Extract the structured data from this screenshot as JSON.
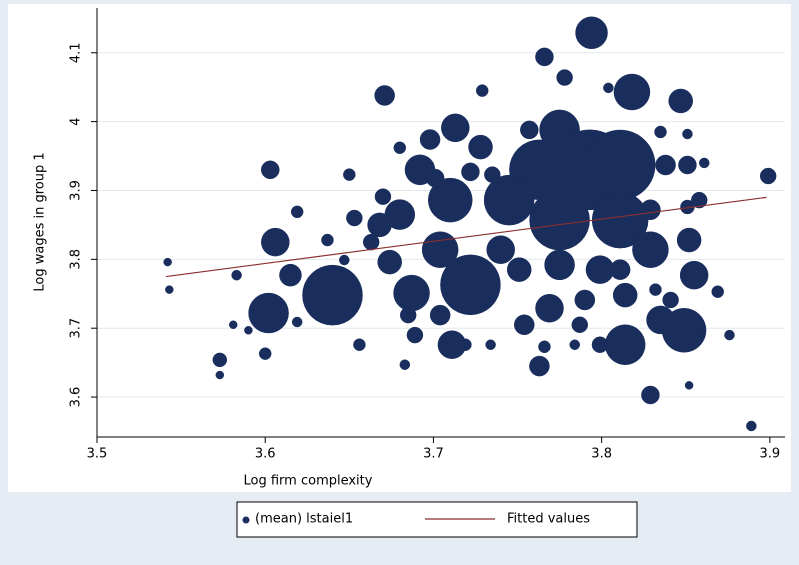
{
  "chart_data": {
    "type": "scatter",
    "xlabel": "Log firm complexity",
    "ylabel": "Log wages in group 1",
    "xlim": [
      3.5,
      3.909
    ],
    "ylim": [
      3.542,
      4.165
    ],
    "xticks": [
      3.5,
      3.6,
      3.7,
      3.8,
      3.9
    ],
    "yticks": [
      3.6,
      3.7,
      3.8,
      3.9,
      4,
      4.1
    ],
    "grid": "y",
    "legend": "bottom",
    "series": [
      {
        "name": "(mean) lstaiel1",
        "type": "scatter",
        "color": "#1a2e5e",
        "x": [
          3.794,
          3.766,
          3.778,
          3.818,
          3.847,
          3.729,
          3.671,
          3.804,
          3.835,
          3.851,
          3.713,
          3.698,
          3.728,
          3.757,
          3.775,
          3.793,
          3.811,
          3.763,
          3.745,
          3.775,
          3.811,
          3.71,
          3.692,
          3.68,
          3.704,
          3.722,
          3.64,
          3.602,
          3.603,
          3.606,
          3.615,
          3.619,
          3.573,
          3.573,
          3.6,
          3.687,
          3.674,
          3.668,
          3.67,
          3.653,
          3.65,
          3.683,
          3.685,
          3.704,
          3.711,
          3.719,
          3.734,
          3.754,
          3.769,
          3.787,
          3.79,
          3.814,
          3.814,
          3.799,
          3.784,
          3.763,
          3.766,
          3.775,
          3.829,
          3.852,
          3.855,
          3.835,
          3.849,
          3.829,
          3.852,
          3.858,
          3.869,
          3.876,
          3.889,
          3.899,
          3.851,
          3.851,
          3.858,
          3.861,
          3.838,
          3.647,
          3.637,
          3.65,
          3.619,
          3.542,
          3.543,
          3.581,
          3.59,
          3.583,
          3.663,
          3.656,
          3.689,
          3.701,
          3.722,
          3.735,
          3.74,
          3.751,
          3.799,
          3.829,
          3.841,
          3.811,
          3.832,
          3.68
        ],
        "y": [
          4.129,
          4.094,
          4.064,
          4.043,
          4.03,
          4.045,
          4.038,
          4.049,
          3.985,
          3.982,
          3.991,
          3.974,
          3.963,
          3.988,
          3.988,
          3.93,
          3.937,
          3.93,
          3.886,
          3.857,
          3.857,
          3.886,
          3.93,
          3.865,
          3.814,
          3.763,
          3.748,
          3.722,
          3.93,
          3.825,
          3.777,
          3.869,
          3.654,
          3.632,
          3.663,
          3.751,
          3.796,
          3.85,
          3.891,
          3.86,
          3.923,
          3.647,
          3.719,
          3.719,
          3.676,
          3.676,
          3.676,
          3.705,
          3.729,
          3.705,
          3.741,
          3.748,
          3.676,
          3.676,
          3.676,
          3.645,
          3.673,
          3.792,
          3.814,
          3.828,
          3.777,
          3.712,
          3.697,
          3.603,
          3.617,
          3.69,
          3.753,
          3.69,
          3.558,
          3.921,
          3.937,
          3.876,
          3.886,
          3.94,
          3.937,
          3.799,
          3.828,
          3.774,
          3.709,
          3.796,
          3.756,
          3.705,
          3.697,
          3.777,
          3.825,
          3.676,
          3.69,
          3.918,
          3.927,
          3.923,
          3.814,
          3.785,
          3.785,
          3.872,
          3.741,
          3.785,
          3.756,
          3.962
        ],
        "sizes": [
          16,
          9,
          8,
          18,
          12,
          6,
          10,
          5,
          6,
          5,
          14,
          10,
          12,
          9,
          20,
          40,
          35,
          30,
          25,
          30,
          28,
          22,
          15,
          15,
          18,
          30,
          30,
          20,
          9,
          14,
          11,
          6,
          7,
          4,
          6,
          18,
          12,
          12,
          8,
          8,
          6,
          5,
          8,
          10,
          14,
          6,
          5,
          10,
          14,
          8,
          10,
          12,
          20,
          8,
          5,
          10,
          6,
          15,
          18,
          12,
          14,
          14,
          22,
          9,
          4,
          6,
          6,
          5,
          5,
          8,
          9,
          7,
          8,
          5,
          10,
          5,
          6,
          5,
          5,
          4,
          4,
          4,
          4,
          5,
          8,
          6,
          8,
          9,
          9,
          8,
          14,
          12,
          14,
          10,
          8,
          10,
          6,
          6
        ]
      },
      {
        "name": "Fitted values",
        "type": "line",
        "color": "#8b2e2e",
        "x": [
          3.541,
          3.898
        ],
        "y": [
          3.775,
          3.89
        ]
      }
    ]
  }
}
